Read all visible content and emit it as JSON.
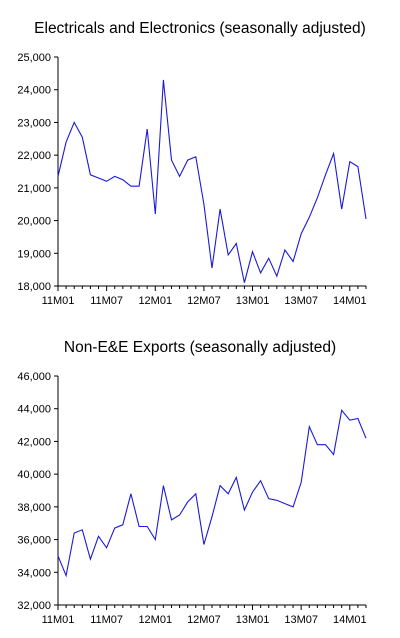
{
  "chart_data": [
    {
      "type": "line",
      "title": "Electricals and Electronics (seasonally adjusted)",
      "xlabel": "",
      "ylabel": "",
      "x_tick_labels": [
        "11M01",
        "11M07",
        "12M01",
        "12M07",
        "13M01",
        "13M07",
        "14M01"
      ],
      "y_ticks": [
        18000,
        19000,
        20000,
        21000,
        22000,
        23000,
        24000,
        25000
      ],
      "y_tick_labels": [
        "18,000",
        "19,000",
        "20,000",
        "21,000",
        "22,000",
        "23,000",
        "24,000",
        "25,000"
      ],
      "ylim": [
        18000,
        25000
      ],
      "grid": false,
      "line_color": "#1a1adb",
      "series": [
        {
          "values": [
            21350,
            22400,
            23000,
            22550,
            21400,
            21300,
            21200,
            21350,
            21250,
            21050,
            21050,
            22800,
            20200,
            24300,
            21850,
            21350,
            21850,
            21950,
            20500,
            18550,
            20350,
            18950,
            19300,
            18100,
            19050,
            18400,
            18850,
            18300,
            19100,
            18750,
            19600,
            20100,
            20700,
            21400,
            22050,
            20350,
            21800,
            21650,
            20050
          ]
        }
      ]
    },
    {
      "type": "line",
      "title": "Non-E&E Exports (seasonally adjusted)",
      "xlabel": "",
      "ylabel": "",
      "x_tick_labels": [
        "11M01",
        "11M07",
        "12M01",
        "12M07",
        "13M01",
        "13M07",
        "14M01"
      ],
      "y_ticks": [
        32000,
        34000,
        36000,
        38000,
        40000,
        42000,
        44000,
        46000
      ],
      "y_tick_labels": [
        "32,000",
        "34,000",
        "36,000",
        "38,000",
        "40,000",
        "42,000",
        "44,000",
        "46,000"
      ],
      "ylim": [
        32000,
        46000
      ],
      "grid": false,
      "line_color": "#1a1adb",
      "series": [
        {
          "values": [
            35000,
            33800,
            36400,
            36600,
            34800,
            36200,
            35500,
            36700,
            36900,
            38800,
            36800,
            36800,
            36000,
            39300,
            37200,
            37500,
            38300,
            38800,
            35700,
            37400,
            39300,
            38800,
            39800,
            37800,
            38900,
            39600,
            38500,
            38400,
            38200,
            38000,
            39500,
            42900,
            41800,
            41800,
            41200,
            43900,
            43300,
            43400,
            42200
          ]
        }
      ]
    }
  ]
}
